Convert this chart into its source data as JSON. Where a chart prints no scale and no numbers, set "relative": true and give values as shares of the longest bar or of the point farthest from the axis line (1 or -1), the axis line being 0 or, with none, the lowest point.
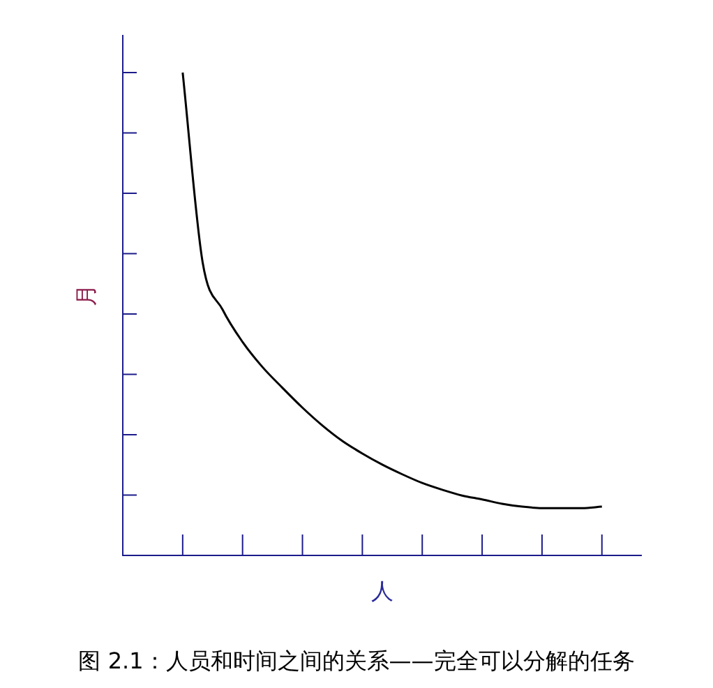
{
  "chart_data": {
    "type": "line",
    "relative": true,
    "title": "图 2.1：人员和时间之间的关系——完全可以分解的任务",
    "xlabel": "人",
    "ylabel": "月",
    "categories": [
      null,
      null,
      null,
      null,
      null,
      null,
      null,
      null,
      null,
      null,
      null,
      null,
      null,
      null,
      null,
      null,
      null,
      null,
      null,
      null,
      null,
      null,
      null,
      null,
      null,
      null,
      null
    ],
    "series": [
      {
        "color": "#000000",
        "values": [
          null,
          null,
          null,
          1.0,
          0.607,
          0.509,
          0.442,
          0.39,
          0.347,
          0.306,
          0.269,
          0.237,
          0.211,
          0.188,
          0.168,
          0.15,
          0.136,
          0.124,
          0.116,
          0.107,
          0.101,
          0.098,
          0.098,
          0.098,
          0.101,
          null,
          null
        ]
      }
    ],
    "marker": "none",
    "line_style": "solid",
    "legend": false
  }
}
